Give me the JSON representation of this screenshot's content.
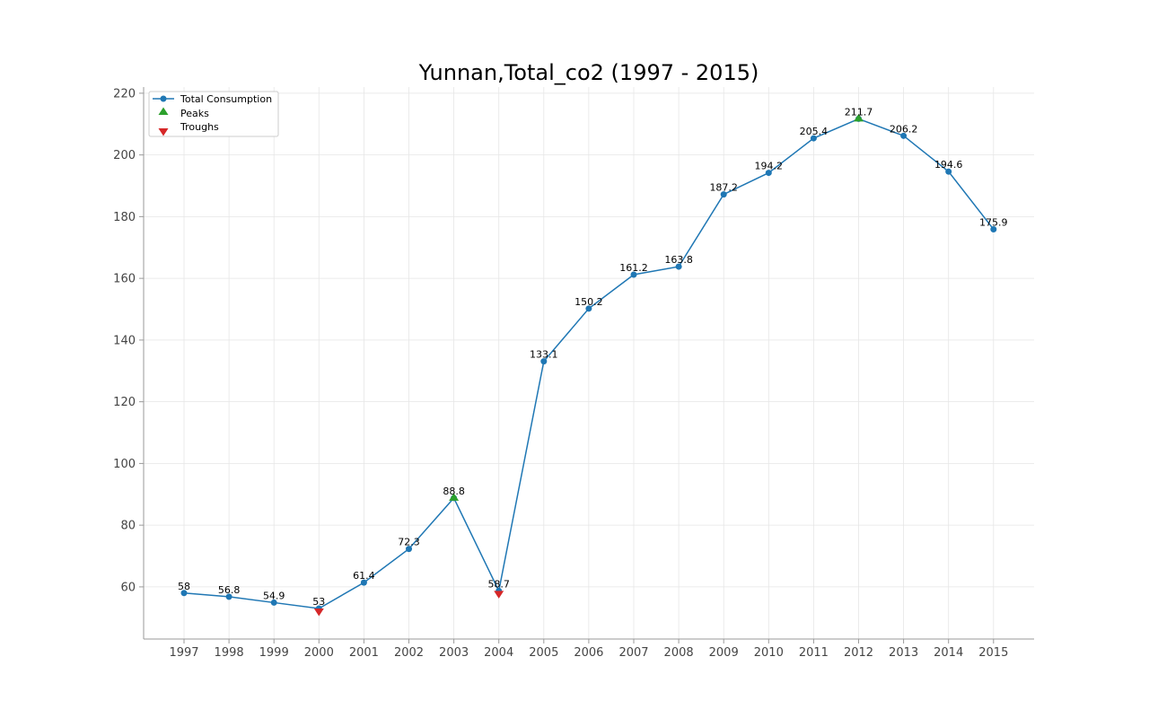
{
  "chart_data": {
    "type": "line",
    "title": "Yunnan,Total_co2 (1997 - 2015)",
    "xlabel": "",
    "ylabel": "",
    "x": [
      "1997",
      "1998",
      "1999",
      "2000",
      "2001",
      "2002",
      "2003",
      "2004",
      "2005",
      "2006",
      "2007",
      "2008",
      "2009",
      "2010",
      "2011",
      "2012",
      "2013",
      "2014",
      "2015"
    ],
    "series": [
      {
        "name": "Total Consumption",
        "color": "#1f77b4",
        "values": [
          58,
          56.8,
          54.9,
          53,
          61.4,
          72.3,
          88.8,
          58.7,
          133.1,
          150.2,
          161.2,
          163.8,
          187.2,
          194.2,
          205.4,
          211.7,
          206.2,
          194.6,
          175.9
        ]
      }
    ],
    "data_labels": [
      "58",
      "56.8",
      "54.9",
      "53",
      "61.4",
      "72.3",
      "88.8",
      "58.7",
      "133.1",
      "150.2",
      "161.2",
      "163.8",
      "187.2",
      "194.2",
      "205.4",
      "211.7",
      "206.2",
      "194.6",
      "175.9"
    ],
    "peaks": {
      "name": "Peaks",
      "color": "#2ca02c",
      "x": [
        "2003",
        "2012"
      ],
      "values": [
        88.8,
        211.7
      ]
    },
    "troughs": {
      "name": "Troughs",
      "color": "#d62728",
      "x": [
        "2000",
        "2004"
      ],
      "values": [
        53,
        58.7
      ]
    },
    "ylim": [
      43.1,
      222
    ],
    "yticks": [
      60,
      80,
      100,
      120,
      140,
      160,
      180,
      200,
      220
    ],
    "ytick_labels": [
      "60",
      "80",
      "100",
      "120",
      "140",
      "160",
      "180",
      "200",
      "220"
    ],
    "grid": true,
    "legend": {
      "placement": "top-left",
      "entries": [
        "Total Consumption",
        "Peaks",
        "Troughs"
      ]
    }
  }
}
